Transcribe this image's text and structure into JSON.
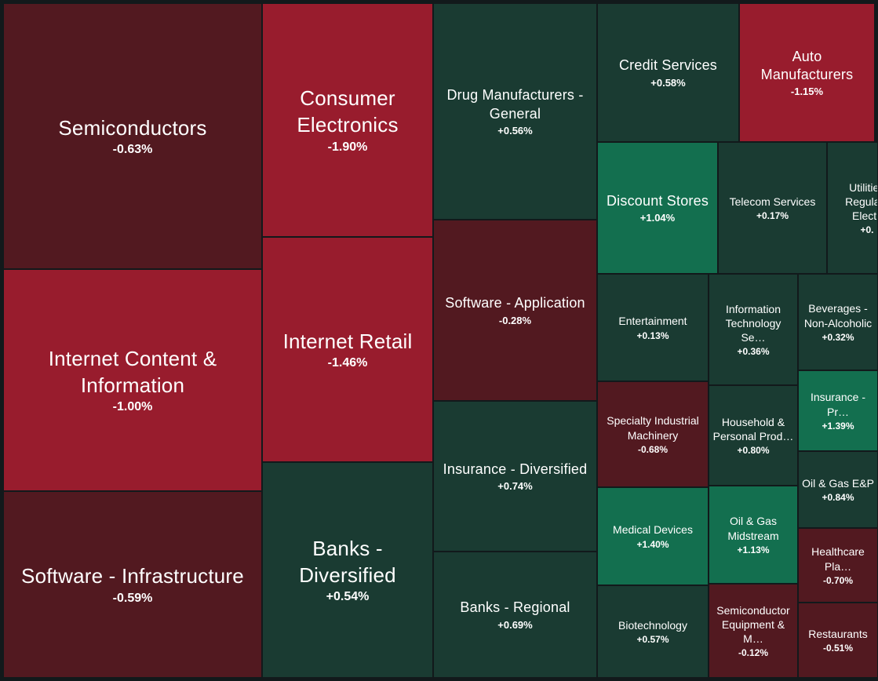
{
  "colors": {
    "background": "#12191b",
    "dark_red": "#521920",
    "bright_red": "#981c2d",
    "dark_green": "#1a3b32",
    "bright_green": "#136f4f",
    "tile_border": "#12191b"
  },
  "tiles": [
    {
      "id": "semiconductors",
      "label": "Semiconductors",
      "change": "-0.63%",
      "value": -0.63
    },
    {
      "id": "internet-content-information",
      "label": "Internet Content & Information",
      "change": "-1.00%",
      "value": -1.0
    },
    {
      "id": "software-infrastructure",
      "label": "Software - Infrastructure",
      "change": "-0.59%",
      "value": -0.59
    },
    {
      "id": "consumer-electronics",
      "label": "Consumer Electronics",
      "change": "-1.90%",
      "value": -1.9
    },
    {
      "id": "internet-retail",
      "label": "Internet Retail",
      "change": "-1.46%",
      "value": -1.46
    },
    {
      "id": "banks-diversified",
      "label": "Banks - Diversified",
      "change": "+0.54%",
      "value": 0.54
    },
    {
      "id": "drug-manufacturers-general",
      "label": "Drug Manufacturers - General",
      "change": "+0.56%",
      "value": 0.56
    },
    {
      "id": "software-application",
      "label": "Software - Application",
      "change": "-0.28%",
      "value": -0.28
    },
    {
      "id": "insurance-diversified",
      "label": "Insurance - Diversified",
      "change": "+0.74%",
      "value": 0.74
    },
    {
      "id": "banks-regional",
      "label": "Banks - Regional",
      "change": "+0.69%",
      "value": 0.69
    },
    {
      "id": "credit-services",
      "label": "Credit Services",
      "change": "+0.58%",
      "value": 0.58
    },
    {
      "id": "auto-manufacturers",
      "label": "Auto Manufacturers",
      "change": "-1.15%",
      "value": -1.15
    },
    {
      "id": "discount-stores",
      "label": "Discount Stores",
      "change": "+1.04%",
      "value": 1.04
    },
    {
      "id": "telecom-services",
      "label": "Telecom Services",
      "change": "+0.17%",
      "value": 0.17
    },
    {
      "id": "utilities-regulated-electric",
      "label": "Utilities - Regulated Electric",
      "change": "+0.",
      "value": null
    },
    {
      "id": "entertainment",
      "label": "Entertainment",
      "change": "+0.13%",
      "value": 0.13
    },
    {
      "id": "information-technology-services",
      "label": "Information Technology Se…",
      "change": "+0.36%",
      "value": 0.36
    },
    {
      "id": "beverages-non-alcoholic",
      "label": "Beverages - Non-Alcoholic",
      "change": "+0.32%",
      "value": 0.32
    },
    {
      "id": "specialty-industrial-machinery",
      "label": "Specialty Industrial Machinery",
      "change": "-0.68%",
      "value": -0.68
    },
    {
      "id": "household-personal-products",
      "label": "Household & Personal Prod…",
      "change": "+0.80%",
      "value": 0.8
    },
    {
      "id": "insurance-property-casualty",
      "label": "Insurance - Pr…",
      "change": "+1.39%",
      "value": 1.39
    },
    {
      "id": "oil-gas-ep",
      "label": "Oil & Gas E&P",
      "change": "+0.84%",
      "value": 0.84
    },
    {
      "id": "medical-devices",
      "label": "Medical Devices",
      "change": "+1.40%",
      "value": 1.4
    },
    {
      "id": "oil-gas-midstream",
      "label": "Oil & Gas Midstream",
      "change": "+1.13%",
      "value": 1.13
    },
    {
      "id": "healthcare-plans",
      "label": "Healthcare Pla…",
      "change": "-0.70%",
      "value": -0.7
    },
    {
      "id": "biotechnology",
      "label": "Biotechnology",
      "change": "+0.57%",
      "value": 0.57
    },
    {
      "id": "semiconductor-equipment-materials",
      "label": "Semiconductor Equipment & M…",
      "change": "-0.12%",
      "value": -0.12
    },
    {
      "id": "restaurants",
      "label": "Restaurants",
      "change": "-0.51%",
      "value": -0.51
    }
  ]
}
